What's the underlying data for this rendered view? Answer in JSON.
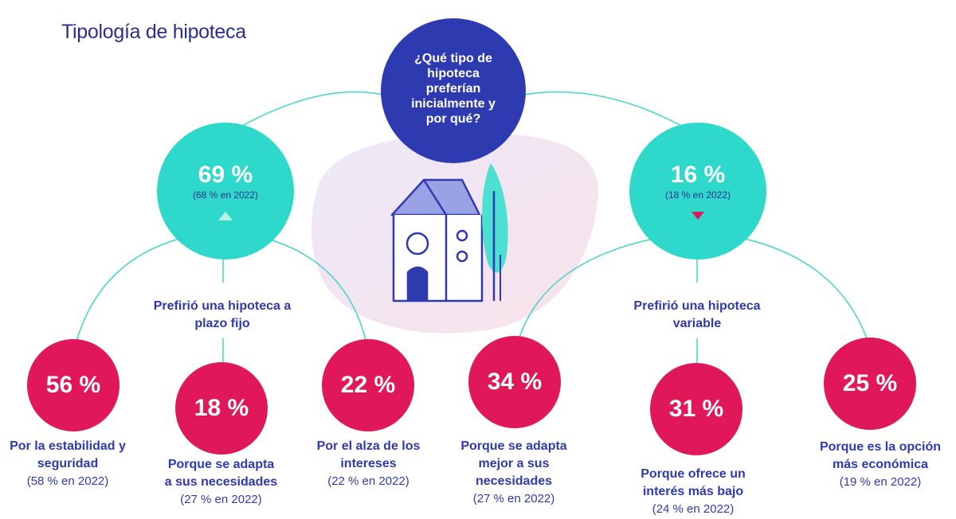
{
  "title": "Tipología de hipoteca",
  "question": "¿Qué tipo de hipoteca preferían inicialmente y por qué?",
  "fixed": {
    "percent": "69 %",
    "previous": "(68 % en 2022)",
    "trend": "up",
    "label": "Prefirió una hipoteca a plazo fijo",
    "reasons": [
      {
        "percent": "56 %",
        "text": "Por la estabilidad y seguridad",
        "previous": "(58 % en 2022)"
      },
      {
        "percent": "18 %",
        "text": "Porque se adapta a sus necesidades",
        "previous": "(27 % en 2022)"
      },
      {
        "percent": "22 %",
        "text": "Por el alza de los intereses",
        "previous": "(22 % en 2022)"
      }
    ]
  },
  "variable": {
    "percent": "16 %",
    "previous": "(18 % en 2022)",
    "trend": "down",
    "label": "Prefirió una hipoteca variable",
    "reasons": [
      {
        "percent": "34 %",
        "text": "Porque se adapta mejor a sus necesidades",
        "previous": "(27 % en 2022)"
      },
      {
        "percent": "31 %",
        "text": "Porque ofrece un interés más bajo",
        "previous": "(24 % en 2022)"
      },
      {
        "percent": "25 %",
        "text": "Porque es la opción más económica",
        "previous": "(19 % en 2022)"
      }
    ]
  },
  "colors": {
    "navy": "#2e3ab0",
    "teal": "#2ed9cc",
    "pink": "#e0185a",
    "connector": "#3fd6c8"
  }
}
